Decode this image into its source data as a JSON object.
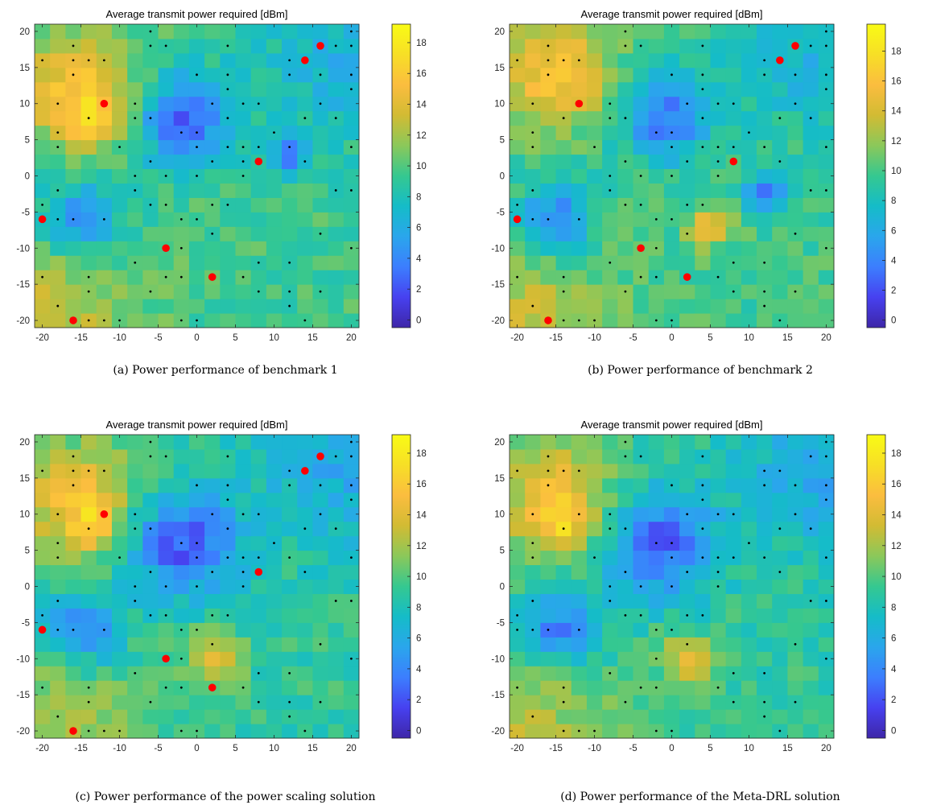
{
  "colorbar_colors": [
    "#3e26a8",
    "#4741f0",
    "#3c7efe",
    "#2aa6ec",
    "#15bcc8",
    "#35c890",
    "#8bc85a",
    "#d2bb33",
    "#fbbd3f",
    "#f7df26",
    "#f9fb15"
  ],
  "panels": [
    {
      "caption": "(a) Power performance of benchmark 1",
      "chart_data": {
        "type": "heatmap",
        "title": "Average transmit power required [dBm]",
        "xlim": [
          -21,
          21
        ],
        "ylim": [
          -21,
          21
        ],
        "xticks": [
          -20,
          -15,
          -10,
          -5,
          0,
          5,
          10,
          15,
          20
        ],
        "yticks": [
          -20,
          -15,
          -10,
          -5,
          0,
          5,
          10,
          15,
          20
        ],
        "xtick_labels": [
          "-20",
          "-15",
          "-10",
          "-5",
          "0",
          "5",
          "10",
          "15",
          "20"
        ],
        "ytick_labels": [
          "-20",
          "-15",
          "-10",
          "-5",
          "0",
          "5",
          "10",
          "15",
          "20"
        ],
        "colorbar_ticks": [
          0,
          2,
          4,
          6,
          8,
          10,
          12,
          14,
          16,
          18
        ],
        "colorbar_tick_labels": [
          "0",
          "2",
          "4",
          "6",
          "8",
          "10",
          "12",
          "14",
          "16",
          "18"
        ],
        "colorbar_range": [
          -0.5,
          19.2
        ],
        "red_points": [
          [
            16,
            18
          ],
          [
            14,
            16
          ],
          [
            -12,
            10
          ],
          [
            8,
            2
          ],
          [
            -20,
            -6
          ],
          [
            -4,
            -10
          ],
          [
            2,
            -14
          ],
          [
            -16,
            -20
          ]
        ],
        "field": {
          "base": 9.5,
          "hotspots": [
            [
              -15,
              12,
              5.5,
              6
            ],
            [
              -19,
              -20,
              8,
              3.5
            ],
            [
              -14,
              8,
              2.5,
              3
            ]
          ],
          "coldspots": [
            [
              19,
              16,
              8,
              3
            ],
            [
              -2,
              8,
              4.5,
              7
            ],
            [
              -15,
              -6,
              3.5,
              6
            ],
            [
              12,
              3,
              2,
              6
            ]
          ]
        }
      }
    },
    {
      "caption": "(b) Power performance of benchmark 2",
      "chart_data": {
        "type": "heatmap",
        "title": "Average transmit power required [dBm]",
        "xlim": [
          -21,
          21
        ],
        "ylim": [
          -21,
          21
        ],
        "xticks": [
          -20,
          -15,
          -10,
          -5,
          0,
          5,
          10,
          15,
          20
        ],
        "yticks": [
          -20,
          -15,
          -10,
          -5,
          0,
          5,
          10,
          15,
          20
        ],
        "xtick_labels": [
          "-20",
          "-15",
          "-10",
          "-5",
          "0",
          "5",
          "10",
          "15",
          "20"
        ],
        "ytick_labels": [
          "-20",
          "-15",
          "-10",
          "-5",
          "0",
          "5",
          "10",
          "15",
          "20"
        ],
        "colorbar_ticks": [
          0,
          2,
          4,
          6,
          8,
          10,
          12,
          14,
          16,
          18
        ],
        "colorbar_tick_labels": [
          "0",
          "2",
          "4",
          "6",
          "8",
          "10",
          "12",
          "14",
          "16",
          "18"
        ],
        "colorbar_range": [
          -0.5,
          19.8
        ],
        "red_points": [
          [
            16,
            18
          ],
          [
            14,
            16
          ],
          [
            -12,
            10
          ],
          [
            8,
            2
          ],
          [
            -20,
            -6
          ],
          [
            -4,
            -10
          ],
          [
            2,
            -14
          ],
          [
            -16,
            -20
          ]
        ],
        "field": {
          "base": 9.8,
          "hotspots": [
            [
              -15,
              14,
              5,
              6.5
            ],
            [
              -19,
              -20,
              8,
              3.5
            ],
            [
              5,
              -7,
              2,
              5
            ]
          ],
          "coldspots": [
            [
              19,
              17,
              8,
              3
            ],
            [
              -1,
              8,
              4,
              6.5
            ],
            [
              -15,
              -6,
              3.5,
              6
            ],
            [
              12,
              -2,
              2,
              6
            ]
          ]
        }
      }
    },
    {
      "caption": "(c) Power performance of the power scaling solution",
      "chart_data": {
        "type": "heatmap",
        "title": "Average transmit power required [dBm]",
        "xlim": [
          -21,
          21
        ],
        "ylim": [
          -21,
          21
        ],
        "xticks": [
          -20,
          -15,
          -10,
          -5,
          0,
          5,
          10,
          15,
          20
        ],
        "yticks": [
          -20,
          -15,
          -10,
          -5,
          0,
          5,
          10,
          15,
          20
        ],
        "xtick_labels": [
          "-20",
          "-15",
          "-10",
          "-5",
          "0",
          "5",
          "10",
          "15",
          "20"
        ],
        "ytick_labels": [
          "-20",
          "-15",
          "-10",
          "-5",
          "0",
          "5",
          "10",
          "15",
          "20"
        ],
        "colorbar_ticks": [
          0,
          2,
          4,
          6,
          8,
          10,
          12,
          14,
          16,
          18
        ],
        "colorbar_tick_labels": [
          "0",
          "2",
          "4",
          "6",
          "8",
          "10",
          "12",
          "14",
          "16",
          "18"
        ],
        "colorbar_range": [
          -0.5,
          19.2
        ],
        "red_points": [
          [
            16,
            18
          ],
          [
            14,
            16
          ],
          [
            -12,
            10
          ],
          [
            8,
            2
          ],
          [
            -20,
            -6
          ],
          [
            -4,
            -10
          ],
          [
            2,
            -14
          ],
          [
            -16,
            -20
          ]
        ],
        "field": {
          "base": 9.0,
          "hotspots": [
            [
              -15,
              12,
              5.5,
              6
            ],
            [
              -19,
              -20,
              8,
              3.5
            ],
            [
              -14,
              8,
              2.5,
              3
            ],
            [
              2,
              -10,
              2.5,
              5
            ]
          ],
          "coldspots": [
            [
              19,
              16,
              8,
              3
            ],
            [
              -2,
              6,
              5,
              7
            ],
            [
              -15,
              -6,
              3.5,
              6
            ]
          ]
        }
      }
    },
    {
      "caption": "(d) Power performance of the Meta-DRL solution",
      "chart_data": {
        "type": "heatmap",
        "title": "Average transmit power required [dBm]",
        "xlim": [
          -21,
          21
        ],
        "ylim": [
          -21,
          21
        ],
        "xticks": [
          -20,
          -15,
          -10,
          -5,
          0,
          5,
          10,
          15,
          20
        ],
        "yticks": [
          -20,
          -15,
          -10,
          -5,
          0,
          5,
          10,
          15,
          20
        ],
        "xtick_labels": [
          "-20",
          "-15",
          "-10",
          "-5",
          "0",
          "5",
          "10",
          "15",
          "20"
        ],
        "ytick_labels": [
          "-20",
          "-15",
          "-10",
          "-5",
          "0",
          "5",
          "10",
          "15",
          "20"
        ],
        "colorbar_ticks": [
          0,
          2,
          4,
          6,
          8,
          10,
          12,
          14,
          16,
          18
        ],
        "colorbar_tick_labels": [
          "0",
          "2",
          "4",
          "6",
          "8",
          "10",
          "12",
          "14",
          "16",
          "18"
        ],
        "colorbar_range": [
          -0.5,
          19.2
        ],
        "red_points": [],
        "field": {
          "base": 9.0,
          "hotspots": [
            [
              -15,
              12,
              5.5,
              6
            ],
            [
              -19,
              -20,
              8,
              3.5
            ],
            [
              -14,
              8,
              2.5,
              3
            ],
            [
              2,
              -10,
              2.5,
              5
            ]
          ],
          "coldspots": [
            [
              19,
              16,
              8,
              3
            ],
            [
              -2,
              6,
              5,
              7
            ],
            [
              -15,
              -6,
              3.5,
              6
            ]
          ]
        }
      }
    }
  ]
}
